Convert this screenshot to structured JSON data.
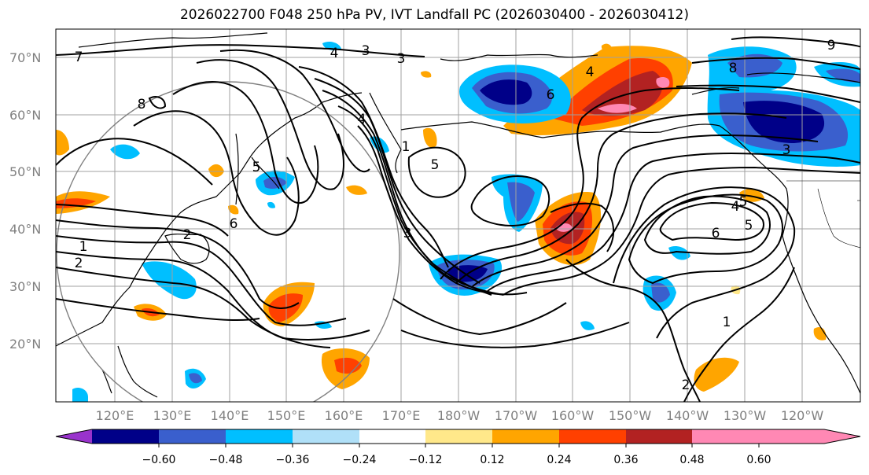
{
  "title": "2026022700 F048 250 hPa PV, IVT Landfall PC (2026030400 - 2026030412)",
  "map": {
    "lat_labels": [
      "70°N",
      "60°N",
      "50°N",
      "40°N",
      "30°N",
      "20°N"
    ],
    "lon_labels": [
      "120°E",
      "130°E",
      "140°E",
      "150°E",
      "160°E",
      "170°E",
      "180°W",
      "170°W",
      "160°W",
      "150°W",
      "140°W",
      "130°W",
      "120°W"
    ],
    "contour_labels": [
      "7",
      "8",
      "4",
      "3",
      "3",
      "4",
      "6",
      "9",
      "8",
      "5",
      "5",
      "1",
      "2",
      "1",
      "2",
      "6",
      "3",
      "4",
      "6",
      "5",
      "4",
      "5",
      "1",
      "2",
      "3"
    ]
  },
  "colorbar": {
    "ticks": [
      "−0.60",
      "−0.48",
      "−0.36",
      "−0.24",
      "−0.12",
      "0.12",
      "0.24",
      "0.36",
      "0.48",
      "0.60"
    ],
    "colors": [
      "#9933cc",
      "#000088",
      "#3a5fcd",
      "#00bfff",
      "#b0e0f8",
      "#ffffff",
      "#ffe88a",
      "#ffa500",
      "#ff4000",
      "#b22222",
      "#ff88b4",
      "#ff88b4"
    ]
  }
}
